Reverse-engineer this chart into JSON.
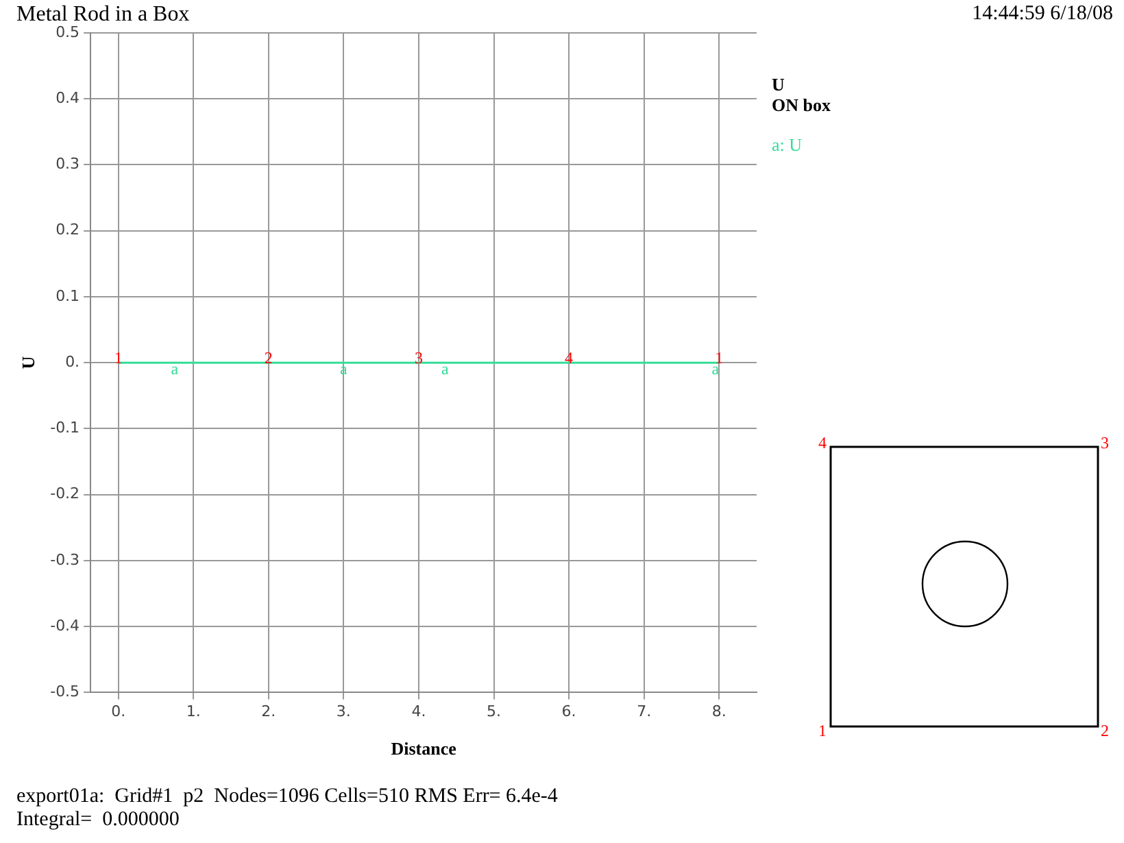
{
  "chart_data": {
    "type": "line",
    "title": "Metal Rod in a Box",
    "xlabel": "Distance",
    "ylabel": "U",
    "legend_title": "U",
    "x": [
      0,
      8
    ],
    "series": [
      {
        "name": "a: U",
        "color": "#33dd99",
        "values": [
          0,
          0
        ]
      }
    ],
    "xlim": [
      -0.37,
      8.5
    ],
    "ylim": [
      -0.5,
      0.5
    ],
    "xticks": [
      {
        "value": 0,
        "label": "0."
      },
      {
        "value": 1,
        "label": "1."
      },
      {
        "value": 2,
        "label": "2."
      },
      {
        "value": 3,
        "label": "3."
      },
      {
        "value": 4,
        "label": "4."
      },
      {
        "value": 5,
        "label": "5."
      },
      {
        "value": 6,
        "label": "6."
      },
      {
        "value": 7,
        "label": "7."
      },
      {
        "value": 8,
        "label": "8."
      }
    ],
    "yticks": [
      -0.5,
      -0.4,
      -0.3,
      -0.2,
      -0.1,
      {
        "value": 0,
        "label": "0."
      },
      0.1,
      0.2,
      0.3,
      0.4,
      0.5
    ],
    "grid": true,
    "legend": "top right",
    "marker": "none",
    "line_style": "solid",
    "annotations": [
      "14:44:59 6/18/08",
      "ON box",
      "export01a:  Grid#1  p2  Nodes=1096 Cells=510 RMS Err= 6.4e-4",
      "Integral=  0.000000",
      "4",
      "3",
      "1",
      "2",
      {
        "text": "1",
        "x": 0,
        "y": 0
      },
      {
        "text": "2",
        "x": 2,
        "y": 0
      },
      {
        "text": "3",
        "x": 4,
        "y": 0
      },
      {
        "text": "4",
        "x": 6,
        "y": 0
      },
      {
        "text": "1",
        "x": 8,
        "y": 0
      },
      {
        "text": "a",
        "x": 0.75,
        "y": 0
      },
      {
        "text": "a",
        "x": 3,
        "y": 0
      },
      {
        "text": "a",
        "x": 4.35,
        "y": 0
      },
      {
        "text": "a",
        "x": 7.95,
        "y": 0
      }
    ]
  }
}
